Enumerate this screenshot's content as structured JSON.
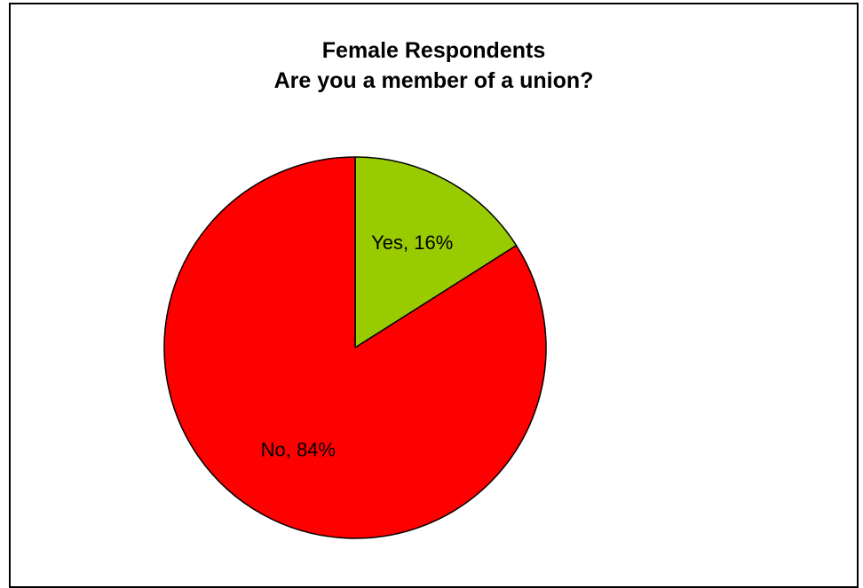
{
  "chart": {
    "title_line1": "Female Respondents",
    "title_line2": "Are you a member of a union?"
  },
  "chart_data": {
    "type": "pie",
    "title": "Female Respondents Are you a member of a union?",
    "categories": [
      "Yes",
      "No"
    ],
    "values": [
      16,
      84
    ],
    "labels": [
      "Yes, 16%",
      "No, 84%"
    ],
    "colors": [
      "#99cc00",
      "#ff0000"
    ],
    "legend": "none",
    "data_labels": "inside"
  }
}
